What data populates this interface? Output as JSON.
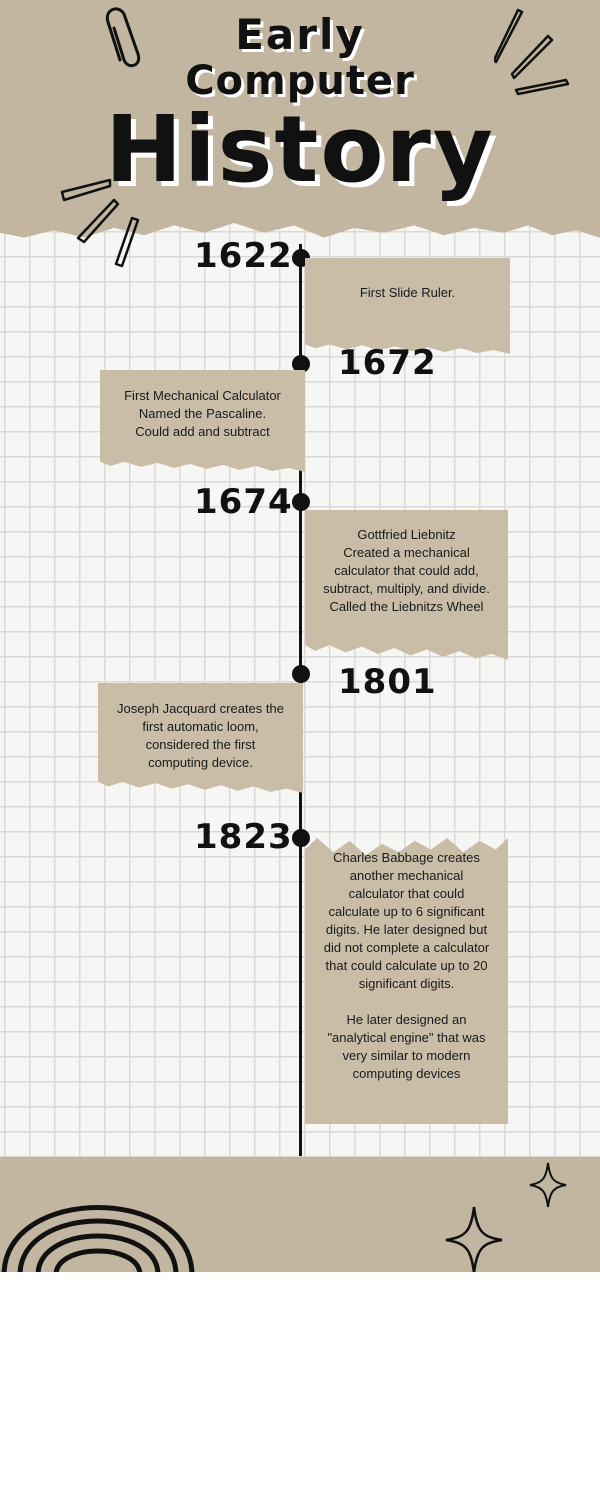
{
  "title": {
    "line1": "Early",
    "line2": "Computer",
    "line3": "History"
  },
  "timeline": [
    {
      "year": "1622",
      "text": "First Slide Ruler."
    },
    {
      "year": "1672",
      "text": "First Mechanical Calculator\nNamed the Pascaline.\nCould add and subtract"
    },
    {
      "year": "1674",
      "text": "Gottfried Liebnitz\nCreated a mechanical\ncalculator that could add,\nsubtract, multiply, and divide.\nCalled the Liebnitzs Wheel"
    },
    {
      "year": "1801",
      "text": "Joseph Jacquard creates the\nfirst automatic loom,\nconsidered the first\ncomputing device."
    },
    {
      "year": "1823",
      "text": "Charles Babbage creates\nanother mechanical\ncalculator that could\ncalculate up to 6 significant\ndigits. He later designed but\ndid not complete a calculator\nthat could calculate up to 20\nsignificant digits.\n\nHe later designed an\n\"analytical engine\" that was\nvery similar to modern\ncomputing devices"
    }
  ],
  "colors": {
    "paper": "#c2b6a0",
    "card": "#c9bda8",
    "ink": "#111111",
    "grid": "#d9d9d6"
  },
  "icons": [
    "paperclip-icon",
    "burst-lines-icon",
    "rainbow-arches-icon",
    "sparkle-star-icon"
  ]
}
